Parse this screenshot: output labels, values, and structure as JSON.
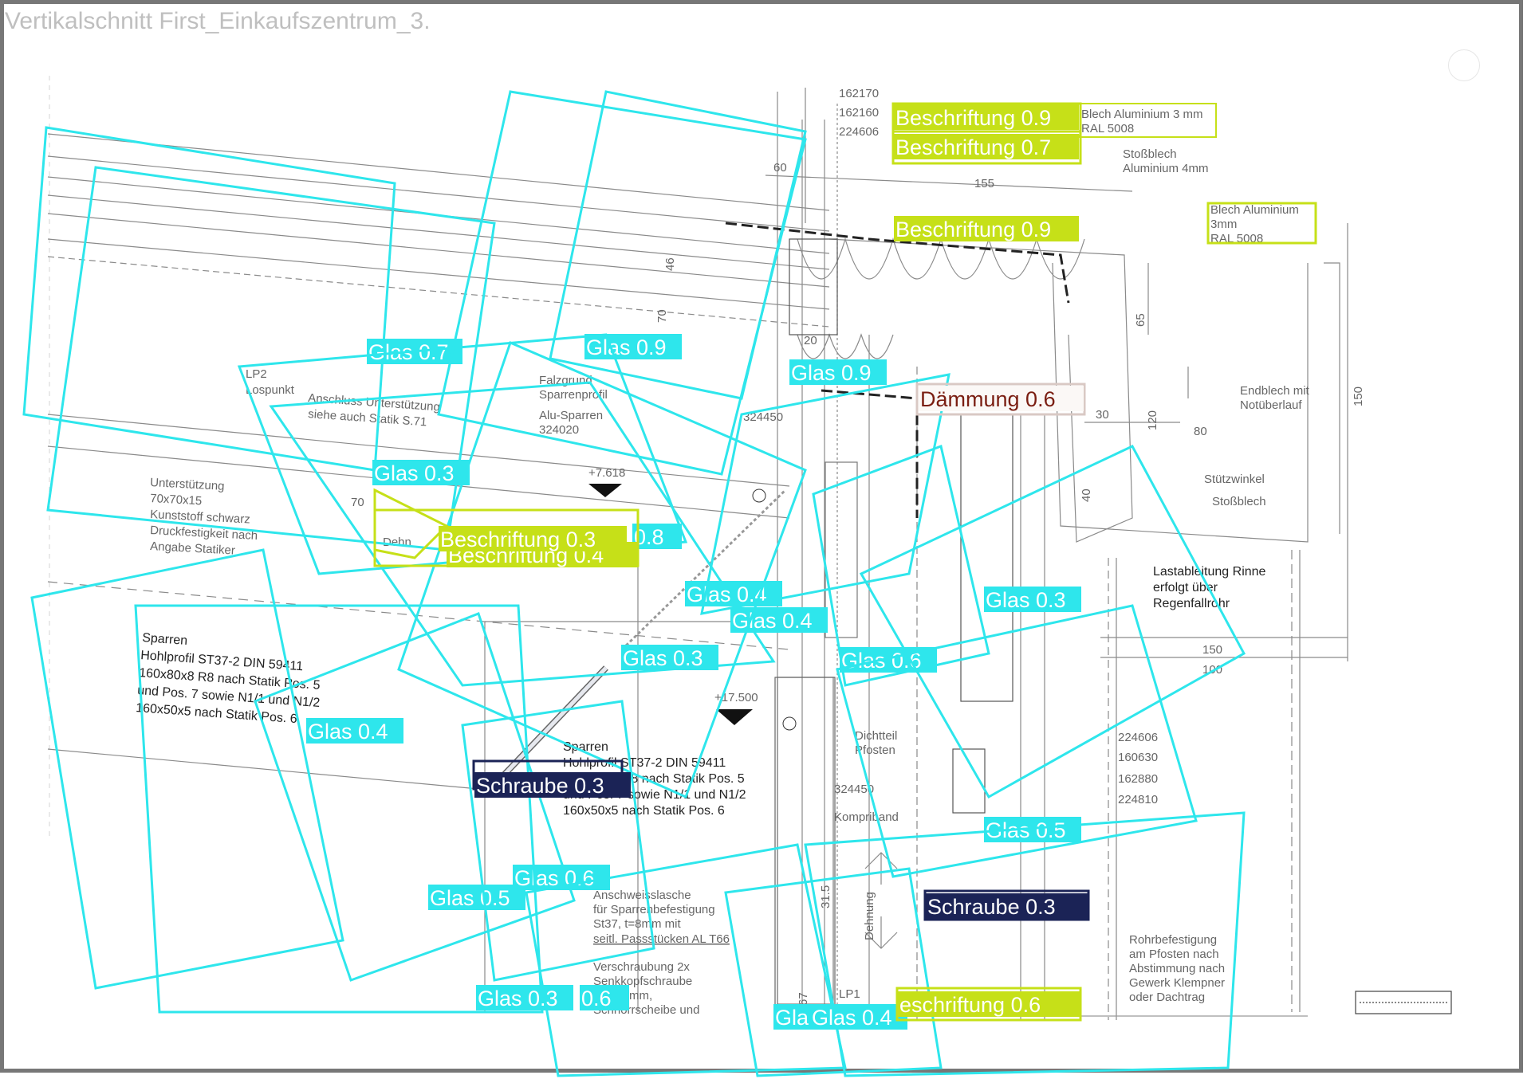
{
  "view": {
    "title": "Vertikalschnitt First_Einkaufszentrum_3."
  },
  "colors": {
    "glas": "#2ee6ec",
    "beschriftung": "#c6e018",
    "daemmung": "#fbf8f6",
    "daemmung_text": "#7a1e12",
    "schraube": "#1b2356",
    "drawing_line": "#8a8a8a"
  },
  "drawing": {
    "dims_top": [
      "162170",
      "162160",
      "224606"
    ],
    "dim_60": "60",
    "dim_155": "155",
    "dim_46": "46",
    "dim_70a": "70",
    "dim_20": "20",
    "dim_30": "30",
    "dim_120": "120",
    "dim_80": "80",
    "dim_40": "40",
    "dim_65": "65",
    "dim_150v": "150",
    "dim_150": "150",
    "dim_100": "100",
    "dim_70b": "70",
    "dims_right": [
      "224606",
      "160630",
      "162880",
      "224810"
    ],
    "blech_top": [
      "Blech Aluminium 3 mm",
      "RAL 5008"
    ],
    "stossblech_top": [
      "Stoßblech",
      "Aluminium 4mm"
    ],
    "blech_right": [
      "Blech Aluminium",
      "3mm",
      "RAL 5008"
    ],
    "endblech": [
      "Endblech mit",
      "Notüberlauf"
    ],
    "stuetzwinkel": "Stützwinkel",
    "stossblech": "Stoßblech",
    "lp2": [
      "LP2",
      "Lospunkt"
    ],
    "anschluss": [
      "Anschluss Unterstützung",
      "siehe auch Statik S.71"
    ],
    "falzgrund": [
      "Falzgrund",
      "Sparrenprofil"
    ],
    "alu_sparren": [
      "Alu-Sparren",
      "324020"
    ],
    "code_324450": "324450",
    "code_324450b": "324450",
    "level_7618": "+7.618",
    "level_17500": "+17.500",
    "unterstuetzung": [
      "Unterstützung",
      "70x70x15",
      "Kunststoff schwarz",
      "Druckfestigkeit nach",
      "Angabe Statiker"
    ],
    "dehn_small": "Dehn",
    "sparren1": [
      "Sparren",
      "Hohlprofil ST37-2 DIN 59411",
      "160x80x8 R8 nach Statik Pos. 5",
      "und Pos. 7 sowie N1/1 und N1/2",
      "160x50x5 nach Statik Pos. 6"
    ],
    "sparren2": [
      "Sparren",
      "Hohlprofil ST37-2 DIN 59411",
      "160x80x8 R8 nach Statik Pos. 5",
      "und Pos. 7 sowie N1/1 und N1/2",
      "160x50x5 nach Statik Pos. 6"
    ],
    "lastableitung": [
      "Lastableitung Rinne",
      "erfolgt über",
      "Regenfallrohr"
    ],
    "dichtteil": [
      "Dichtteil",
      "Pfosten"
    ],
    "kompriband": "Kompriband",
    "anschweiss": [
      "Anschweisslasche",
      "für Sparrenbefestigung",
      "St37, t=8mm mit",
      "seitl. Passstücken AL T66"
    ],
    "verschraubung": [
      "Verschraubung 2x",
      "Senkkopfschraube",
      "M8x20mm,",
      "Schnorrscheibe und"
    ],
    "dehnung": "Dehnung",
    "lp1": "LP1",
    "rohrbefestigung": [
      "Rohrbefestigung",
      "am Pfosten nach",
      "Abstimmung nach",
      "Gewerk Klempner",
      "oder Dachtrag"
    ],
    "dim_315": "31.5",
    "dim_67": "67"
  },
  "annotations": [
    {
      "label": "Glas 0.7",
      "cls": "glas"
    },
    {
      "label": "Glas 0.9",
      "cls": "glas"
    },
    {
      "label": "Glas 0.9",
      "cls": "glas"
    },
    {
      "label": "Glas 0.3",
      "cls": "glas"
    },
    {
      "label": "0.8",
      "cls": "glas"
    },
    {
      "label": "Glas 0.4",
      "cls": "glas"
    },
    {
      "label": "Glas 0.4",
      "cls": "glas"
    },
    {
      "label": "Glas 0.3",
      "cls": "glas"
    },
    {
      "label": "Glas 0.6",
      "cls": "glas"
    },
    {
      "label": "Glas 0.3",
      "cls": "glas"
    },
    {
      "label": "Glas 0.4",
      "cls": "glas"
    },
    {
      "label": "Glas 0.5",
      "cls": "glas"
    },
    {
      "label": "Glas 0.5",
      "cls": "glas"
    },
    {
      "label": "Glas 0.6",
      "cls": "glas"
    },
    {
      "label": "Glas 0.3",
      "cls": "glas"
    },
    {
      "label": "0.6",
      "cls": "glas"
    },
    {
      "label": "Gla",
      "cls": "glas"
    },
    {
      "label": "Glas 0.4",
      "cls": "glas"
    },
    {
      "label": "Beschriftung 0.9",
      "cls": "beschriftung"
    },
    {
      "label": "Beschriftung 0.7",
      "cls": "beschriftung"
    },
    {
      "label": "Beschriftung 0.9",
      "cls": "beschriftung"
    },
    {
      "label": "Beschriftung 0.4",
      "cls": "beschriftung"
    },
    {
      "label": "Beschriftung 0.3",
      "cls": "beschriftung"
    },
    {
      "label": "eschriftung 0.6",
      "cls": "beschriftung"
    },
    {
      "label": "Dämmung 0.6",
      "cls": "daemmung"
    },
    {
      "label": "Schraube 0.3",
      "cls": "schraube"
    },
    {
      "label": "Schraube 0.3",
      "cls": "schraube"
    }
  ]
}
